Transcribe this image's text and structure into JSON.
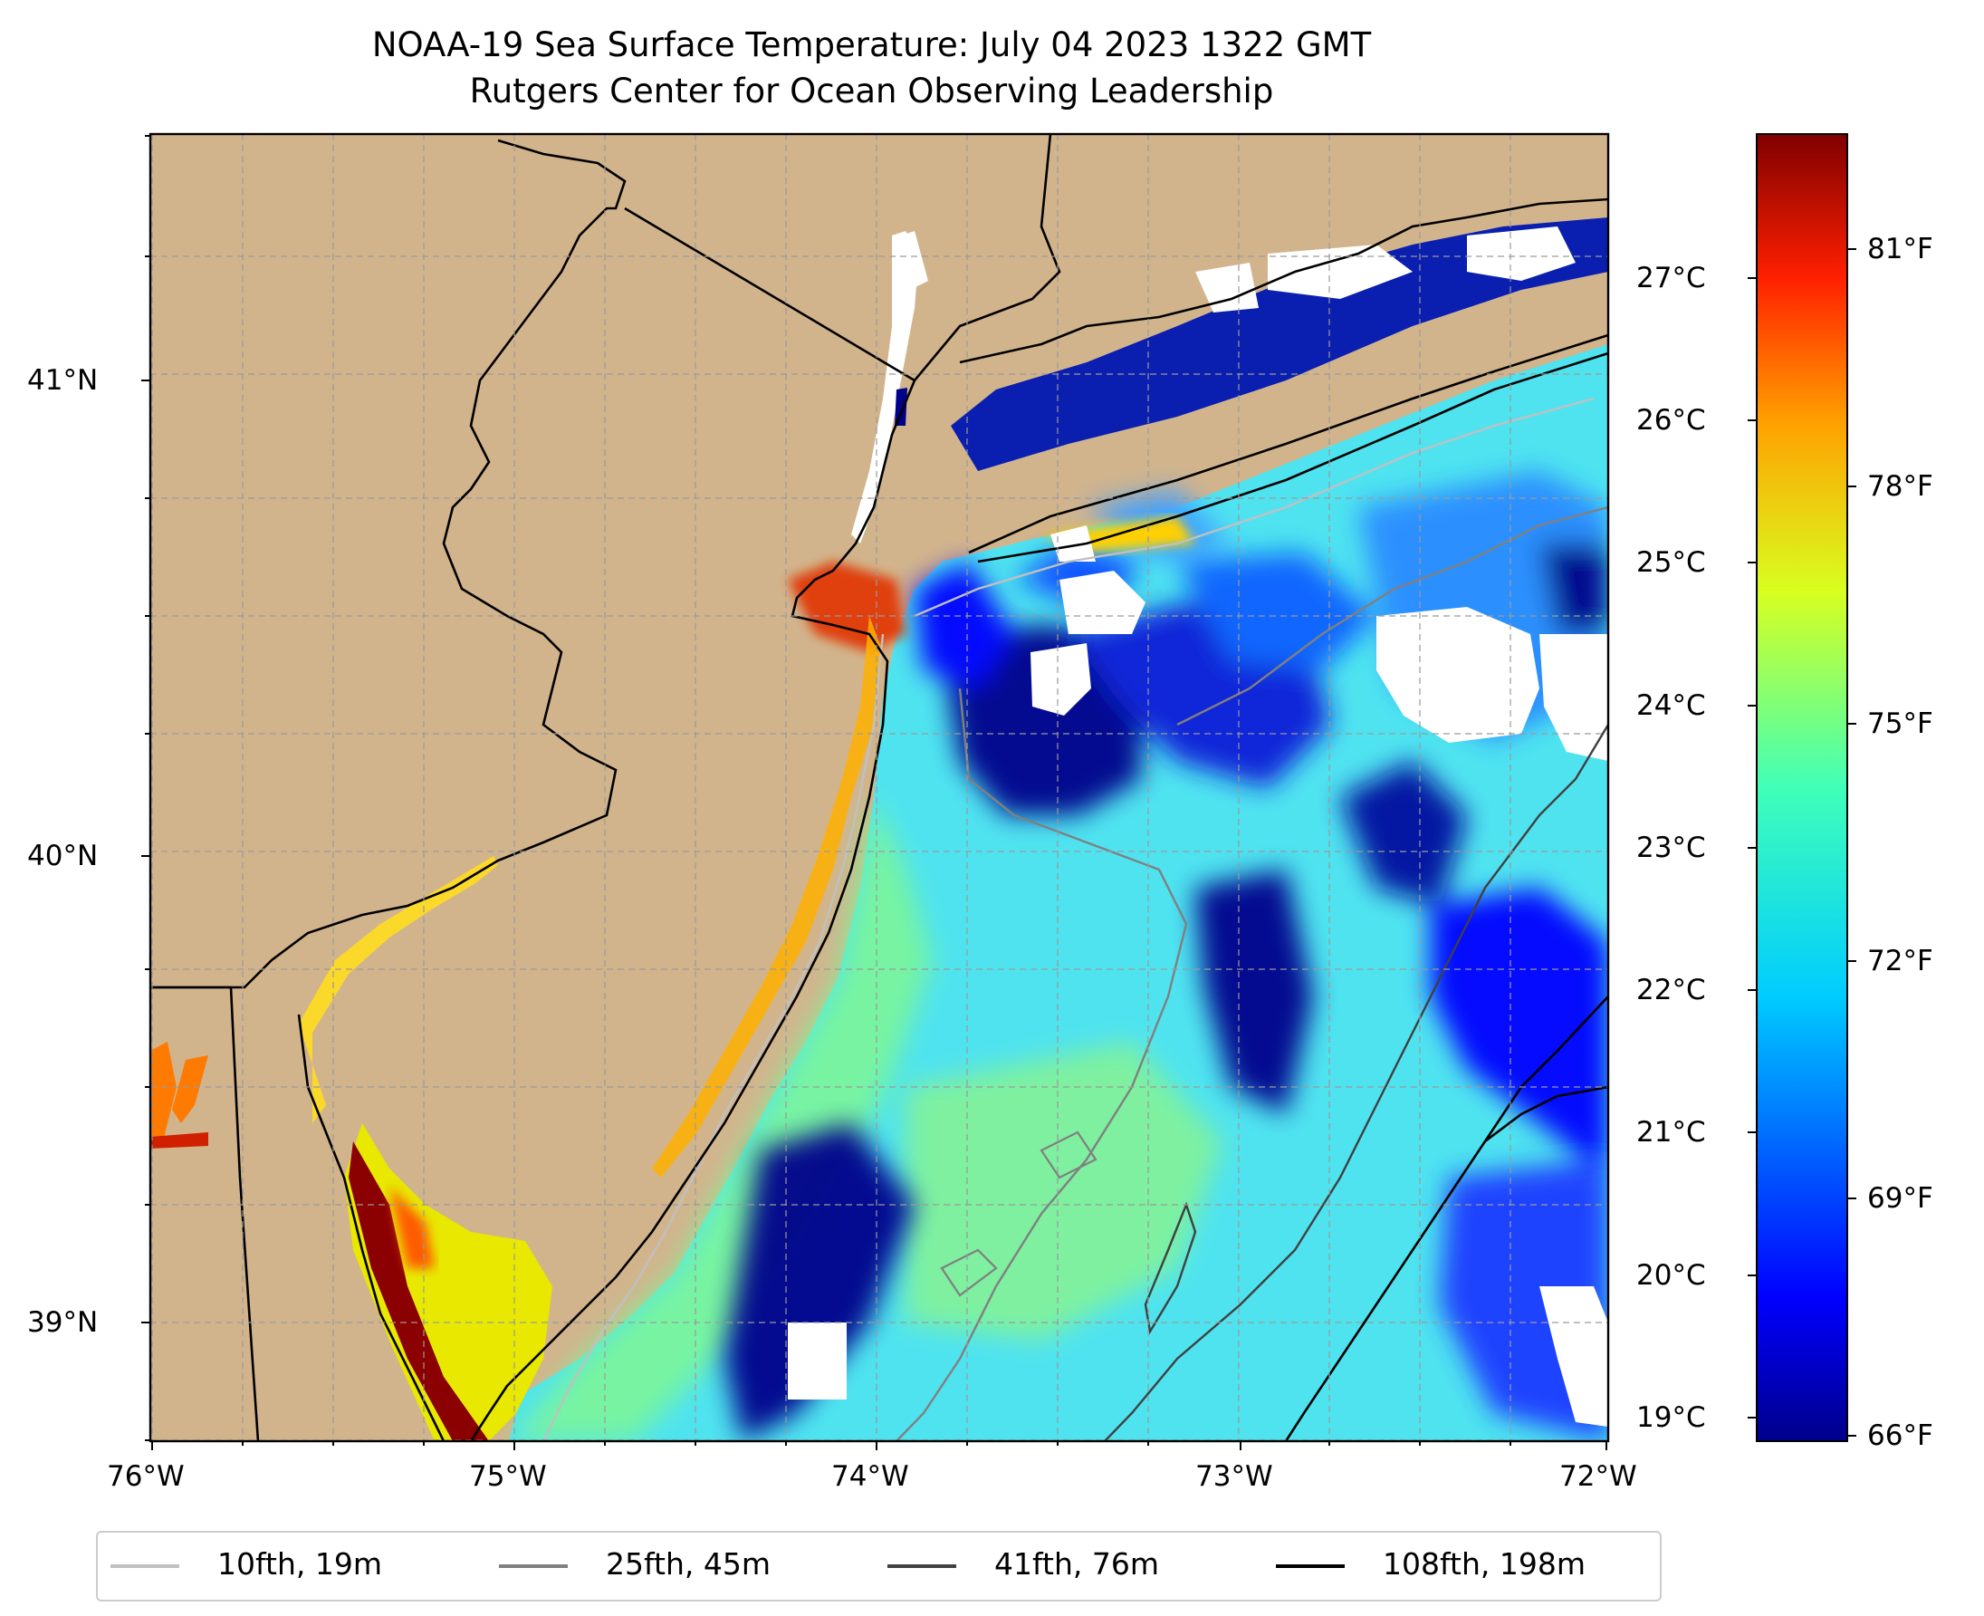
{
  "title": "NOAA-19 Sea Surface Temperature: July 04 2023 1322 GMT",
  "subtitle": "Rutgers Center for Ocean Observing Leadership",
  "x_ticks": [
    "76°W",
    "75°W",
    "74°W",
    "73°W",
    "72°W"
  ],
  "y_ticks": [
    "41°N",
    "40°N",
    "39°N"
  ],
  "colorbar": {
    "celsius_ticks": [
      "27°C",
      "26°C",
      "25°C",
      "24°C",
      "23°C",
      "22°C",
      "21°C",
      "20°C",
      "19°C"
    ],
    "fahrenheit_ticks": [
      "81°F",
      "78°F",
      "75°F",
      "72°F",
      "69°F",
      "66°F"
    ],
    "colormap": "jet"
  },
  "colors": {
    "land": "#d2b48c",
    "no_data": "#ffffff",
    "cold": "#00008b",
    "warm": "#8b0000"
  },
  "legend": [
    {
      "label": "10fth, 19m",
      "color": "#c0c0c0"
    },
    {
      "label": "25fth, 45m",
      "color": "#808080"
    },
    {
      "label": "41fth, 76m",
      "color": "#404040"
    },
    {
      "label": "108fth, 198m",
      "color": "#000000"
    }
  ]
}
